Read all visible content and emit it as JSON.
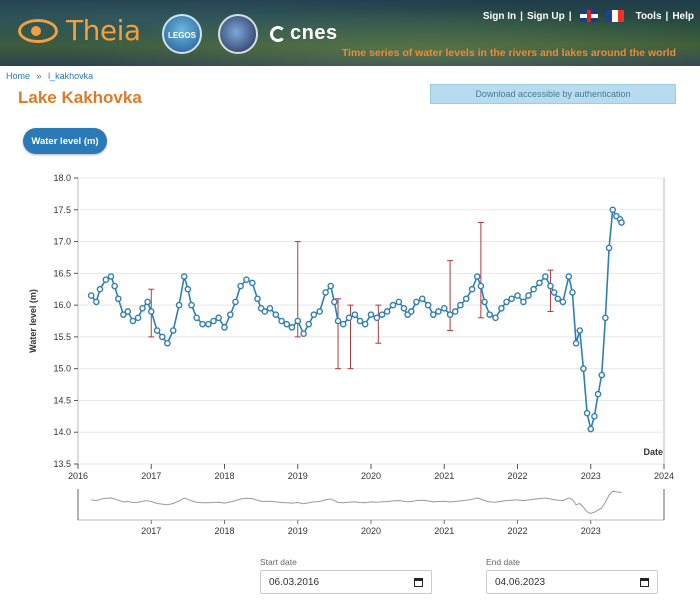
{
  "header": {
    "brand": "Theia",
    "legos_logo": "LEGOS",
    "cnes_logo": "cnes",
    "nav": [
      "Sign In",
      "Sign Up",
      "Tools",
      "Help"
    ],
    "flags": [
      "uk-flag-icon",
      "fr-flag-icon"
    ],
    "tagline": "Time series of water levels in the rivers and lakes around the world"
  },
  "breadcrumb": {
    "home": "Home",
    "separator": "»",
    "current": "l_kakhovka"
  },
  "page_title": "Lake Kakhovka",
  "download_label": "Download accessible by authentication",
  "tab_label": "Water level (m)",
  "chart_data": {
    "type": "line",
    "ylabel": "Water level (m)",
    "xlabel": "Date",
    "ylim": [
      13.5,
      18.0
    ],
    "xlim": [
      2016.0,
      2024.0
    ],
    "yticks": [
      "13.5",
      "14.0",
      "14.5",
      "15.0",
      "15.5",
      "16.0",
      "16.5",
      "17.0",
      "17.5",
      "18.0"
    ],
    "xticks": [
      "2016",
      "2017",
      "2018",
      "2019",
      "2020",
      "2021",
      "2022",
      "2023",
      "2024"
    ],
    "navigator_ticks": [
      "2017",
      "2018",
      "2019",
      "2020",
      "2021",
      "2022",
      "2023"
    ],
    "grid": true,
    "series": [
      {
        "color": "#2f7fb3",
        "x": [
          2016.18,
          2016.25,
          2016.3,
          2016.38,
          2016.45,
          2016.5,
          2016.55,
          2016.62,
          2016.68,
          2016.75,
          2016.82,
          2016.88,
          2016.95,
          2017.0,
          2017.08,
          2017.15,
          2017.22,
          2017.3,
          2017.38,
          2017.45,
          2017.5,
          2017.55,
          2017.62,
          2017.7,
          2017.78,
          2017.85,
          2017.92,
          2018.0,
          2018.08,
          2018.15,
          2018.22,
          2018.3,
          2018.38,
          2018.45,
          2018.5,
          2018.55,
          2018.62,
          2018.7,
          2018.78,
          2018.85,
          2018.92,
          2019.0,
          2019.08,
          2019.15,
          2019.22,
          2019.3,
          2019.38,
          2019.45,
          2019.5,
          2019.55,
          2019.62,
          2019.7,
          2019.78,
          2019.85,
          2019.92,
          2020.0,
          2020.08,
          2020.15,
          2020.22,
          2020.3,
          2020.38,
          2020.45,
          2020.5,
          2020.55,
          2020.62,
          2020.7,
          2020.78,
          2020.85,
          2020.92,
          2021.0,
          2021.08,
          2021.15,
          2021.22,
          2021.3,
          2021.38,
          2021.45,
          2021.5,
          2021.55,
          2021.62,
          2021.7,
          2021.78,
          2021.85,
          2021.92,
          2022.0,
          2022.08,
          2022.15,
          2022.22,
          2022.3,
          2022.38,
          2022.45,
          2022.5,
          2022.55,
          2022.62,
          2022.7,
          2022.75,
          2022.8,
          2022.85,
          2022.9,
          2022.95,
          2023.0,
          2023.05,
          2023.1,
          2023.15,
          2023.2,
          2023.25,
          2023.3,
          2023.35,
          2023.4,
          2023.42
        ],
        "y": [
          16.15,
          16.05,
          16.25,
          16.4,
          16.45,
          16.3,
          16.1,
          15.85,
          15.9,
          15.75,
          15.8,
          15.95,
          16.05,
          15.9,
          15.6,
          15.5,
          15.4,
          15.6,
          16.0,
          16.45,
          16.25,
          16.0,
          15.8,
          15.7,
          15.7,
          15.75,
          15.8,
          15.65,
          15.85,
          16.05,
          16.3,
          16.4,
          16.35,
          16.1,
          15.95,
          15.9,
          15.95,
          15.85,
          15.75,
          15.7,
          15.65,
          15.75,
          15.55,
          15.7,
          15.85,
          15.9,
          16.2,
          16.3,
          16.05,
          15.75,
          15.7,
          15.8,
          15.85,
          15.75,
          15.7,
          15.85,
          15.8,
          15.85,
          15.9,
          16.0,
          16.05,
          15.95,
          15.85,
          15.9,
          16.05,
          16.1,
          16.0,
          15.85,
          15.9,
          15.95,
          15.85,
          15.9,
          16.0,
          16.1,
          16.25,
          16.45,
          16.3,
          16.05,
          15.85,
          15.8,
          15.95,
          16.05,
          16.1,
          16.15,
          16.05,
          16.15,
          16.25,
          16.35,
          16.45,
          16.3,
          16.2,
          16.1,
          16.05,
          16.45,
          16.2,
          15.4,
          15.6,
          15.0,
          14.3,
          14.05,
          14.25,
          14.6,
          14.9,
          15.8,
          16.9,
          17.5,
          17.4,
          17.35,
          17.3
        ]
      }
    ],
    "error_bars": [
      {
        "x": 2017.0,
        "low": 15.5,
        "high": 16.25
      },
      {
        "x": 2019.0,
        "low": 15.5,
        "high": 17.0
      },
      {
        "x": 2019.55,
        "low": 15.0,
        "high": 16.1
      },
      {
        "x": 2019.72,
        "low": 15.0,
        "high": 16.0
      },
      {
        "x": 2020.1,
        "low": 15.4,
        "high": 16.0
      },
      {
        "x": 2021.08,
        "low": 15.6,
        "high": 16.7
      },
      {
        "x": 2021.5,
        "low": 15.8,
        "high": 17.3
      },
      {
        "x": 2022.45,
        "low": 15.9,
        "high": 16.55
      }
    ]
  },
  "date_range": {
    "start_label": "Start date",
    "start_value": "06.03.2016",
    "end_label": "End date",
    "end_value": "04.06.2023"
  }
}
